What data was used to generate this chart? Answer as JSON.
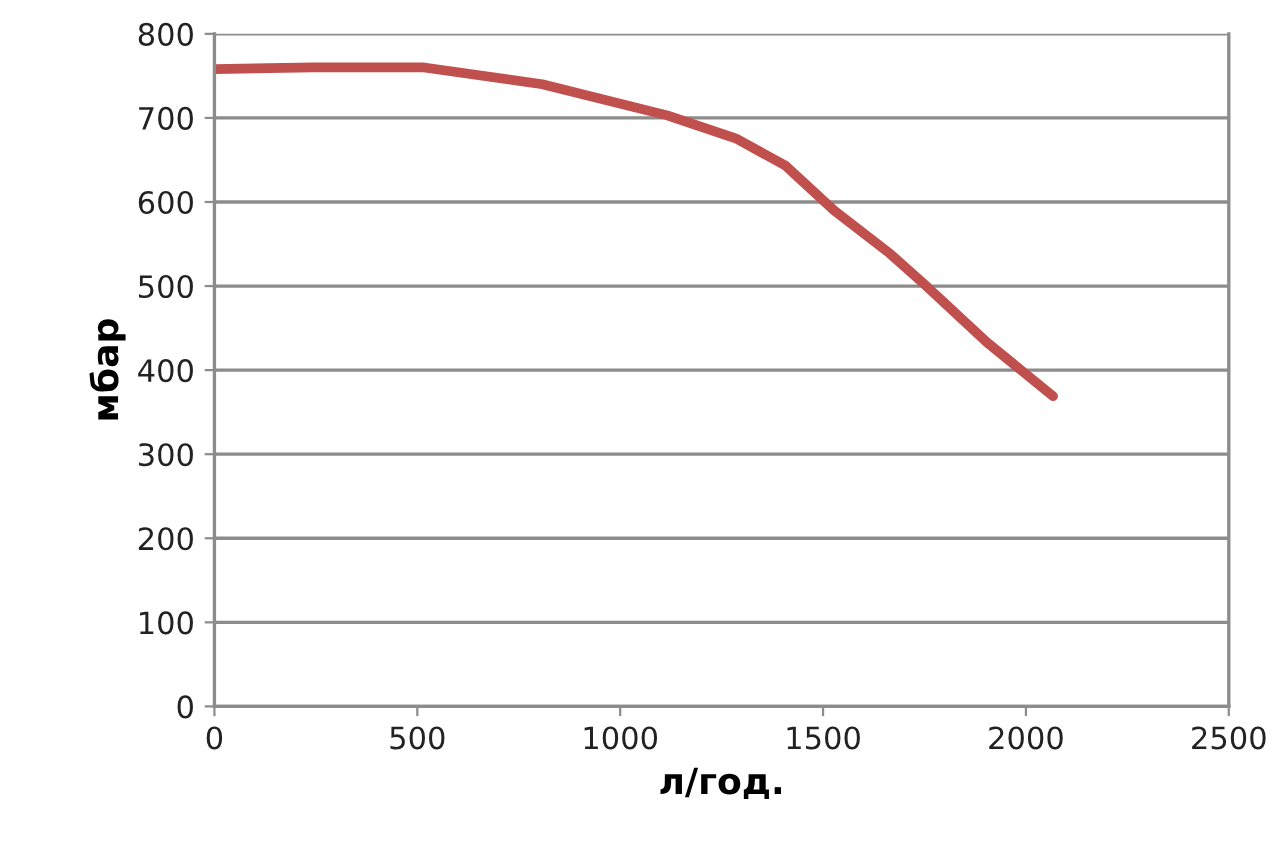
{
  "chart_data": {
    "type": "line",
    "xlabel": "л/год.",
    "ylabel": "мбар",
    "x": [
      0,
      243,
      517,
      808,
      1116,
      1288,
      1408,
      1527,
      1664,
      1750,
      1904,
      2067
    ],
    "values": [
      758,
      760,
      760,
      740,
      703,
      675,
      643,
      590,
      539,
      502,
      433,
      369
    ],
    "color": "#c0504d",
    "marker": "none",
    "line_style": "solid",
    "grid": "y",
    "xlim": [
      0,
      2500
    ],
    "xticks": [
      0,
      500,
      1000,
      1500,
      2000,
      2500
    ],
    "ylim": [
      0,
      800
    ],
    "yticks": [
      0,
      100,
      200,
      300,
      400,
      500,
      600,
      700,
      800
    ]
  }
}
